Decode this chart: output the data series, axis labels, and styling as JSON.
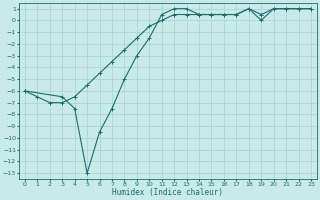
{
  "xlabel": "Humidex (Indice chaleur)",
  "background_color": "#c8eae8",
  "grid_color": "#aad0ce",
  "line_color": "#1a6e6a",
  "xlim": [
    -0.5,
    23.5
  ],
  "ylim": [
    -13.5,
    1.5
  ],
  "xticks": [
    0,
    1,
    2,
    3,
    4,
    5,
    6,
    7,
    8,
    9,
    10,
    11,
    12,
    13,
    14,
    15,
    16,
    17,
    18,
    19,
    20,
    21,
    22,
    23
  ],
  "yticks": [
    1,
    0,
    -1,
    -2,
    -3,
    -4,
    -5,
    -6,
    -7,
    -8,
    -9,
    -10,
    -11,
    -12,
    -13
  ],
  "line1_x": [
    0,
    1,
    2,
    3,
    4,
    5,
    6,
    7,
    8,
    9,
    10,
    11,
    12,
    13,
    14,
    15,
    16,
    17,
    18,
    19,
    20,
    21,
    22,
    23
  ],
  "line1_y": [
    -6,
    -6.5,
    -7,
    -7,
    -6.5,
    -5.5,
    -4.5,
    -3.5,
    -2.5,
    -1.5,
    -0.5,
    0,
    0.5,
    0.5,
    0.5,
    0.5,
    0.5,
    0.5,
    1,
    0.5,
    1,
    1,
    1,
    1
  ],
  "line2_x": [
    0,
    3,
    4,
    5,
    6,
    7,
    8,
    9,
    10,
    11,
    12,
    13,
    14,
    15,
    16,
    17,
    18,
    19,
    20,
    21,
    22,
    23
  ],
  "line2_y": [
    -6,
    -6.5,
    -7.5,
    -13,
    -9.5,
    -7.5,
    -5,
    -3,
    -1.5,
    0.5,
    1,
    1,
    0.5,
    0.5,
    0.5,
    0.5,
    1,
    0,
    1,
    1,
    1,
    1
  ]
}
